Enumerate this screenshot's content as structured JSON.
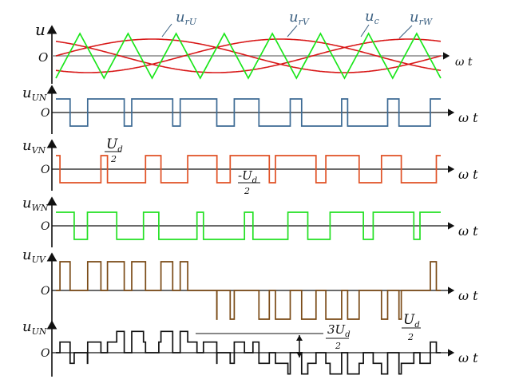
{
  "colors": {
    "axis": "#111111",
    "carrier": "#19e619",
    "ref_u": "#d81818",
    "ref_v": "#d81818",
    "ref_w": "#d81818",
    "u_UN": "#3c6a94",
    "u_VN": "#e05024",
    "u_WN": "#22e022",
    "u_UV": "#7a4a16",
    "u_UN2": "#111111",
    "label_blue": "#3a5f80",
    "grid": "#b0b0b0"
  },
  "top": {
    "ylabel": "u",
    "origin": "O",
    "xlabel": "ω t",
    "labels": {
      "rU": "u",
      "rU_sub": "rU",
      "rV": "u",
      "rV_sub": "rV",
      "c": "u",
      "c_sub": "c",
      "rW": "u",
      "rW_sub": "rW"
    }
  },
  "panels": [
    {
      "key": "u_UN",
      "label": "u",
      "sub": "UN",
      "origin": "O",
      "xlabel": "ω t"
    },
    {
      "key": "u_VN",
      "label": "u",
      "sub": "VN",
      "origin": "O",
      "xlabel": "ω t"
    },
    {
      "key": "u_WN",
      "label": "u",
      "sub": "WN",
      "origin": "O",
      "xlabel": "ω t"
    },
    {
      "key": "u_UV",
      "label": "u",
      "sub": "UV",
      "origin": "O",
      "xlabel": "ω t"
    },
    {
      "key": "u_UN2",
      "label": "u",
      "sub": "UN",
      "origin": "O",
      "xlabel": "ω t"
    }
  ],
  "annotations": {
    "ud_half_pos": {
      "num": "U",
      "num_sub": "d",
      "den": "2"
    },
    "ud_half_neg": {
      "num": "-U",
      "num_sub": "d",
      "den": "2"
    },
    "three_ud": {
      "num": "3U",
      "num_sub": "d",
      "den": "2"
    },
    "ud_half_right": {
      "num": "U",
      "num_sub": "d",
      "den": "2"
    }
  },
  "pwm": {
    "carrier_periods": 8,
    "modulation_index": 0.75,
    "reference_cycles": 1,
    "phase_shift_deg": [
      0,
      120,
      240
    ]
  }
}
